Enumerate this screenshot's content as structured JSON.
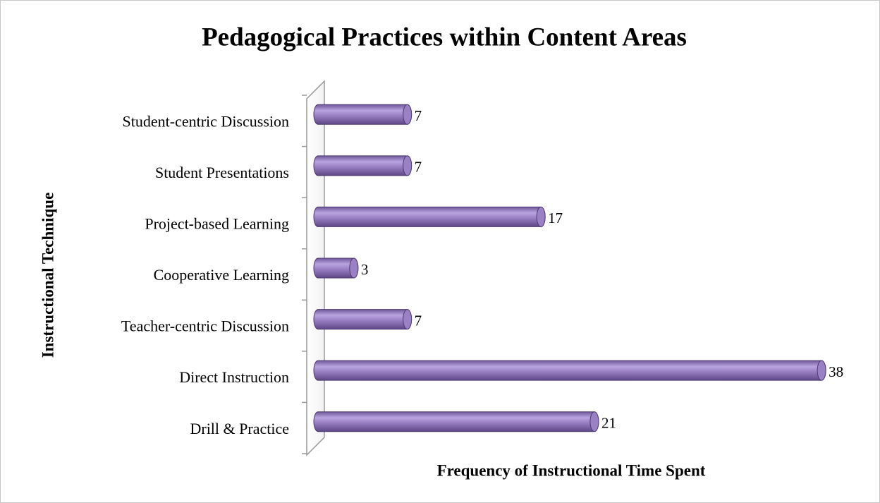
{
  "chart_data": {
    "type": "bar",
    "orientation": "horizontal",
    "title": "Pedagogical Practices within Content Areas",
    "x_label": "Frequency of Instructional Time Spent",
    "y_label": "Instructional Technique",
    "categories": [
      "Drill & Practice",
      "Direct Instruction",
      "Teacher-centric Discussion",
      "Cooperative Learning",
      "Project-based Learning",
      "Student Presentations",
      "Student-centric Discussion"
    ],
    "values": [
      21,
      38,
      7,
      3,
      17,
      7,
      7
    ],
    "color": "#9a80c4",
    "xlim": [
      0,
      40
    ]
  }
}
